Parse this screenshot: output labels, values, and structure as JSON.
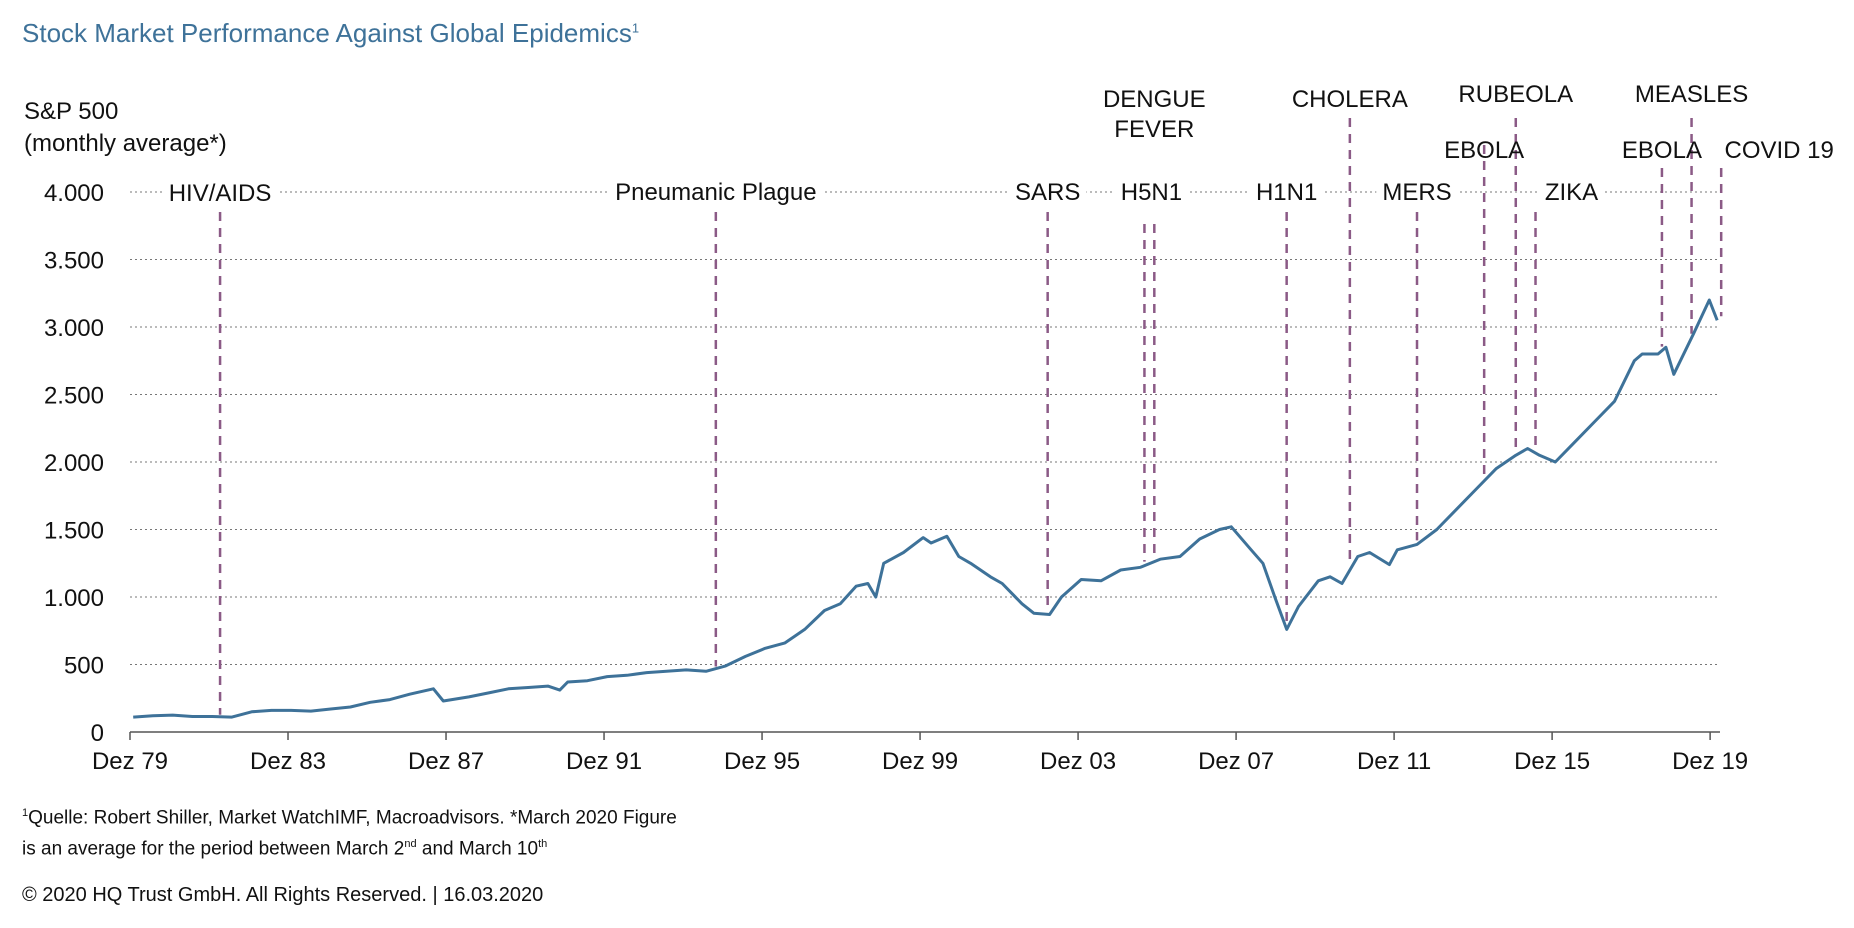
{
  "header": {
    "title": "Stock Market Performance Against Global Epidemics",
    "title_sup": "1"
  },
  "footer": {
    "note_sup1": "1",
    "note_part1": "Quelle: Robert Shiller, Market WatchIMF, Macroadvisors. *March 2020 Figure",
    "note_part2": "is an average for the period between March 2",
    "note_sup2": "nd",
    "note_part3": " and March 10",
    "note_sup3": "th",
    "copyright": "© 2020 HQ Trust GmbH. All Rights Reserved. | 16.03.2020"
  },
  "colors": {
    "title": "#3e7299",
    "line": "#3e7299",
    "event_marker": "#8b5a86",
    "grid": "#777777"
  },
  "chart_data": {
    "type": "line",
    "title": "Stock Market Performance Against Global Epidemics",
    "ylabel_line1": "S&P 500",
    "ylabel_line2": "(monthly average*)",
    "ylim": [
      0,
      4000
    ],
    "xlim": [
      1979.92,
      2020.17
    ],
    "grid": "horizontal dotted",
    "y_ticks": [
      {
        "value": 0,
        "label": "0"
      },
      {
        "value": 500,
        "label": "500"
      },
      {
        "value": 1000,
        "label": "1.000"
      },
      {
        "value": 1500,
        "label": "1.500"
      },
      {
        "value": 2000,
        "label": "2.000"
      },
      {
        "value": 2500,
        "label": "2.500"
      },
      {
        "value": 3000,
        "label": "3.000"
      },
      {
        "value": 3500,
        "label": "3.500"
      },
      {
        "value": 4000,
        "label": "4.000"
      }
    ],
    "x_ticks": [
      {
        "value": 1979.92,
        "label": "Dez 79"
      },
      {
        "value": 1983.92,
        "label": "Dez 83"
      },
      {
        "value": 1987.92,
        "label": "Dez 87"
      },
      {
        "value": 1991.92,
        "label": "Dez 91"
      },
      {
        "value": 1995.92,
        "label": "Dez 95"
      },
      {
        "value": 1999.92,
        "label": "Dez 99"
      },
      {
        "value": 2003.92,
        "label": "Dez 03"
      },
      {
        "value": 2007.92,
        "label": "Dez 07"
      },
      {
        "value": 2011.92,
        "label": "Dez 11"
      },
      {
        "value": 2015.92,
        "label": "Dez 15"
      },
      {
        "value": 2019.92,
        "label": "Dez 19"
      }
    ],
    "series": [
      {
        "x": [
          1980.0,
          1980.5,
          1981.0,
          1981.5,
          1982.0,
          1982.5,
          1983.0,
          1983.5,
          1984.0,
          1984.5,
          1985.0,
          1985.5,
          1986.0,
          1986.5,
          1987.0,
          1987.6,
          1987.85,
          1988.5,
          1989.0,
          1989.5,
          1990.0,
          1990.5,
          1990.8,
          1991.0,
          1991.5,
          1992.0,
          1992.5,
          1993.0,
          1993.5,
          1994.0,
          1994.5,
          1995.0,
          1995.5,
          1996.0,
          1996.5,
          1997.0,
          1997.5,
          1997.9,
          1998.3,
          1998.6,
          1998.8,
          1999.0,
          1999.5,
          2000.0,
          2000.2,
          2000.6,
          2000.9,
          2001.2,
          2001.7,
          2002.0,
          2002.5,
          2002.8,
          2003.2,
          2003.5,
          2004.0,
          2004.5,
          2005.0,
          2005.5,
          2006.0,
          2006.5,
          2007.0,
          2007.5,
          2007.8,
          2008.3,
          2008.6,
          2008.9,
          2009.2,
          2009.5,
          2010.0,
          2010.3,
          2010.6,
          2011.0,
          2011.3,
          2011.8,
          2012.0,
          2012.5,
          2013.0,
          2013.5,
          2014.0,
          2014.5,
          2015.0,
          2015.3,
          2015.6,
          2016.0,
          2016.5,
          2017.0,
          2017.5,
          2018.0,
          2018.2,
          2018.6,
          2018.8,
          2019.0,
          2019.5,
          2019.9,
          2020.1
        ],
        "y": [
          110,
          120,
          125,
          115,
          115,
          110,
          150,
          160,
          160,
          155,
          170,
          185,
          220,
          240,
          280,
          320,
          230,
          260,
          290,
          320,
          330,
          340,
          310,
          370,
          380,
          410,
          420,
          440,
          450,
          460,
          450,
          490,
          560,
          620,
          660,
          760,
          900,
          950,
          1080,
          1100,
          1000,
          1250,
          1330,
          1440,
          1400,
          1450,
          1300,
          1250,
          1150,
          1100,
          950,
          880,
          870,
          1000,
          1130,
          1120,
          1200,
          1220,
          1280,
          1300,
          1430,
          1500,
          1520,
          1350,
          1250,
          1000,
          760,
          930,
          1120,
          1150,
          1100,
          1300,
          1330,
          1240,
          1350,
          1390,
          1500,
          1650,
          1800,
          1950,
          2050,
          2100,
          2050,
          2000,
          2150,
          2300,
          2450,
          2750,
          2800,
          2800,
          2850,
          2650,
          2950,
          3200,
          3050
        ]
      }
    ],
    "events": [
      {
        "name": "HIV/AIDS",
        "year": 1982.2
      },
      {
        "name": "Pneumanic Plague",
        "year": 1994.75
      },
      {
        "name": "SARS",
        "year": 2003.15
      },
      {
        "name": "H5N1",
        "year": 2005.6
      },
      {
        "name": "DENGUE FEVER",
        "year": 2005.85
      },
      {
        "name": "H1N1",
        "year": 2009.2
      },
      {
        "name": "CHOLERA",
        "year": 2010.8
      },
      {
        "name": "MERS",
        "year": 2012.5
      },
      {
        "name": "EBOLA",
        "year": 2014.2
      },
      {
        "name": "RUBEOLA",
        "year": 2015.0
      },
      {
        "name": "ZIKA",
        "year": 2015.5
      },
      {
        "name": "EBOLA",
        "year": 2018.7
      },
      {
        "name": "MEASLES",
        "year": 2019.45
      },
      {
        "name": "COVID 19",
        "year": 2020.2
      }
    ]
  }
}
